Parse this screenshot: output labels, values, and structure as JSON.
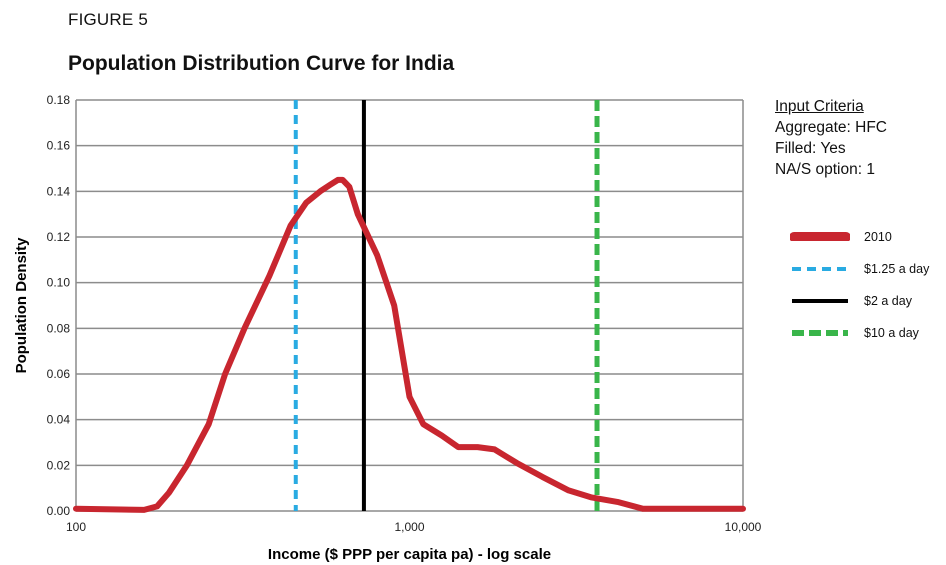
{
  "figure_label": "FIGURE 5",
  "title": "Population Distribution Curve for India",
  "criteria": {
    "heading": "Input Criteria",
    "lines": [
      "Aggregate: HFC",
      "Filled: Yes",
      "NA/S option: 1"
    ]
  },
  "legend": [
    {
      "label": "2010",
      "color": "#c8262f",
      "style": "solid-thick"
    },
    {
      "label": "$1.25 a day",
      "color": "#29abe2",
      "style": "dashed"
    },
    {
      "label": "$2 a day",
      "color": "#000000",
      "style": "solid"
    },
    {
      "label": "$10 a day",
      "color": "#39b54a",
      "style": "dashed-thick"
    }
  ],
  "chart_data": {
    "type": "line",
    "title": "Population Distribution Curve for India",
    "xlabel": "Income ($ PPP per capita pa) - log scale",
    "ylabel": "Population Density",
    "x_scale": "log",
    "xlim": [
      100,
      10000
    ],
    "ylim": [
      0,
      0.18
    ],
    "x_ticks": [
      100,
      1000,
      10000
    ],
    "x_tick_labels": [
      "100",
      "1,000",
      "10,000"
    ],
    "y_ticks": [
      0,
      0.02,
      0.04,
      0.06,
      0.08,
      0.1,
      0.12,
      0.14,
      0.16,
      0.18
    ],
    "y_tick_labels": [
      "0.00",
      "0.02",
      "0.04",
      "0.06",
      "0.08",
      "0.10",
      "0.12",
      "0.14",
      "0.16",
      "0.18"
    ],
    "grid": "horizontal",
    "series": [
      {
        "name": "2010",
        "color": "#c8262f",
        "x": [
          100,
          160,
          175,
          190,
          215,
          250,
          280,
          320,
          380,
          440,
          490,
          540,
          580,
          610,
          630,
          660,
          700,
          800,
          900,
          1000,
          1100,
          1250,
          1400,
          1600,
          1800,
          2100,
          2500,
          3000,
          3500,
          4200,
          5000,
          7000,
          10000
        ],
        "y": [
          0.001,
          0.0005,
          0.002,
          0.008,
          0.02,
          0.038,
          0.06,
          0.08,
          0.103,
          0.125,
          0.135,
          0.14,
          0.143,
          0.145,
          0.145,
          0.142,
          0.13,
          0.112,
          0.09,
          0.05,
          0.038,
          0.033,
          0.028,
          0.028,
          0.027,
          0.021,
          0.015,
          0.009,
          0.006,
          0.004,
          0.001,
          0.001,
          0.001
        ]
      },
      {
        "name": "$1.25 a day",
        "color": "#29abe2",
        "vline": 456
      },
      {
        "name": "$2 a day",
        "color": "#000000",
        "vline": 730
      },
      {
        "name": "$10 a day",
        "color": "#39b54a",
        "vline": 3650
      }
    ]
  }
}
